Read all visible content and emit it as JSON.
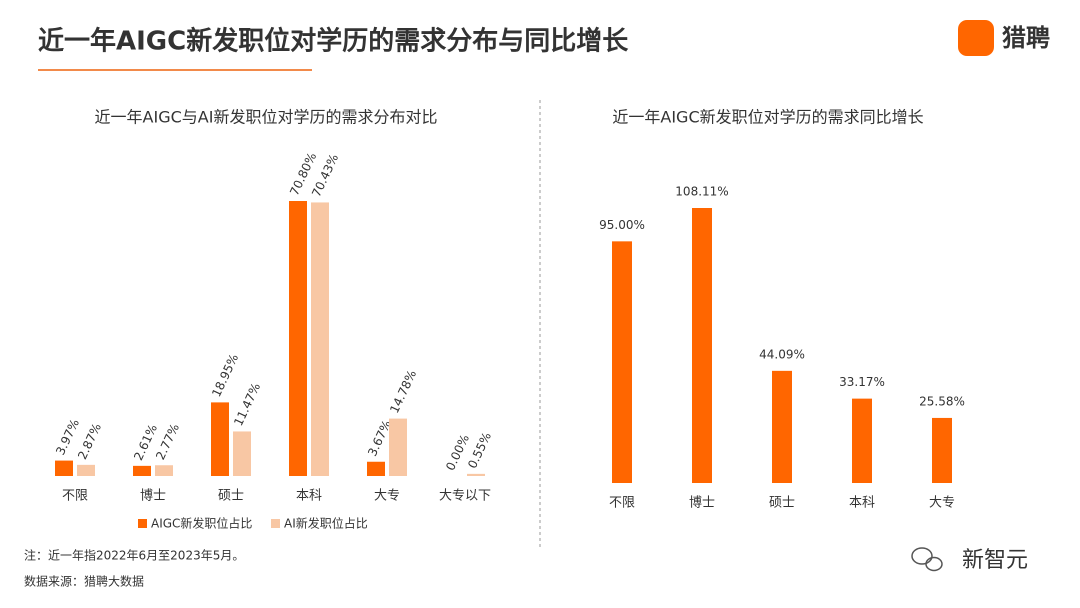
{
  "header": {
    "title": "近一年AIGC新发职位对学历的需求分布与同比增长",
    "logo": "猎聘"
  },
  "chart_data": [
    {
      "type": "bar",
      "title": "近一年AIGC与AI新发职位对学历的需求分布对比",
      "categories": [
        "不限",
        "博士",
        "硕士",
        "本科",
        "大专",
        "大专以下"
      ],
      "series": [
        {
          "name": "AIGC新发职位占比",
          "color": "#ff6600",
          "values": [
            3.97,
            2.61,
            18.95,
            70.8,
            3.67,
            0.0
          ],
          "value_labels": [
            "3.97%",
            "2.61%",
            "18.95%",
            "70.80%",
            "3.67%",
            "0.00%"
          ]
        },
        {
          "name": "AI新发职位占比",
          "color": "#f8c7a4",
          "values": [
            2.87,
            2.77,
            11.47,
            70.43,
            14.78,
            0.55
          ],
          "value_labels": [
            "2.87%",
            "2.77%",
            "11.47%",
            "70.43%",
            "14.78%",
            "0.55%"
          ]
        }
      ],
      "legend": "bottom"
    },
    {
      "type": "bar",
      "title": "近一年AIGC新发职位对学历的需求同比增长",
      "categories": [
        "不限",
        "博士",
        "硕士",
        "本科",
        "大专"
      ],
      "values": [
        95.0,
        108.11,
        44.09,
        33.17,
        25.58
      ],
      "value_labels": [
        "95.00%",
        "108.11%",
        "44.09%",
        "33.17%",
        "25.58%"
      ],
      "color": "#ff6600"
    }
  ],
  "footer": {
    "note": "注：近一年指2022年6月至2023年5月。",
    "source": "数据来源：猎聘大数据",
    "watermark": "新智元"
  }
}
